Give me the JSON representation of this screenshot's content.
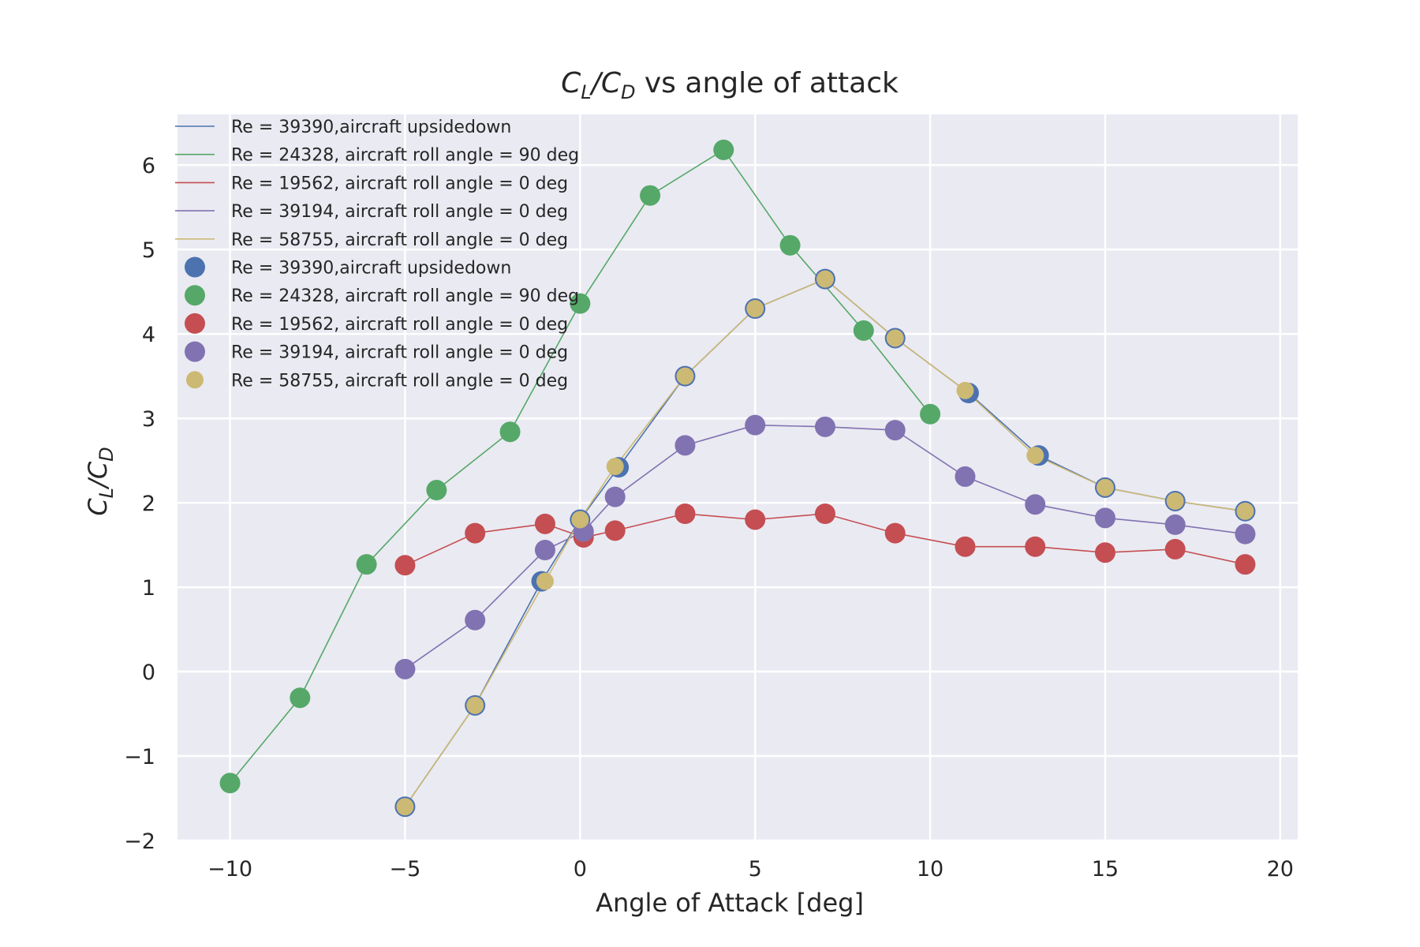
{
  "chart_data": {
    "type": "scatter",
    "title": "C_L/C_D vs angle of attack",
    "title_parts": {
      "c1": "C",
      "s1": "L",
      "slash": "/",
      "c2": "C",
      "s2": "D",
      "rest": " vs angle of attack"
    },
    "xlabel": "Angle of Attack [deg]",
    "ylabel": "C_L/C_D",
    "ylabel_parts": {
      "c1": "C",
      "s1": "L",
      "slash": "/",
      "c2": "C",
      "s2": "D"
    },
    "xlim": [
      -11.5,
      20.5
    ],
    "ylim": [
      -2,
      6.6
    ],
    "xticks": [
      -10,
      -5,
      0,
      5,
      10,
      15,
      20
    ],
    "xtick_labels": [
      "−10",
      "−5",
      "0",
      "5",
      "10",
      "15",
      "20"
    ],
    "yticks": [
      -2,
      -1,
      0,
      1,
      2,
      3,
      4,
      5,
      6
    ],
    "ytick_labels": [
      "−2",
      "−1",
      "0",
      "1",
      "2",
      "3",
      "4",
      "5",
      "6"
    ],
    "grid": true,
    "legend_position": "top-left",
    "colors": {
      "background": "#eaeaf2",
      "grid": "#ffffff",
      "text": "#262626"
    },
    "series": [
      {
        "name": "Re = 39390,aircraft upsidedown",
        "color": "#4c72b0",
        "x": [
          -5,
          -3,
          -1.1,
          0,
          1.1,
          3,
          5,
          7,
          9,
          11.1,
          13.1,
          15,
          17,
          19
        ],
        "y": [
          -1.6,
          -0.4,
          1.07,
          1.8,
          2.42,
          3.5,
          4.3,
          4.65,
          3.95,
          3.3,
          2.56,
          2.18,
          2.02,
          1.9
        ]
      },
      {
        "name": "Re = 24328, aircraft roll angle = 90 deg",
        "color": "#55a868",
        "x": [
          -10,
          -8,
          -6.1,
          -4.1,
          -2,
          0,
          2,
          4.1,
          6,
          8.1,
          10
        ],
        "y": [
          -1.32,
          -0.31,
          1.27,
          2.15,
          2.84,
          4.36,
          5.64,
          6.18,
          5.05,
          4.04,
          3.05
        ]
      },
      {
        "name": "Re = 19562, aircraft roll angle = 0 deg",
        "color": "#c44e52",
        "x": [
          -5,
          -3,
          -1,
          0.1,
          1,
          3,
          5,
          7,
          9,
          11,
          13,
          15,
          17,
          19
        ],
        "y": [
          1.26,
          1.64,
          1.75,
          1.59,
          1.67,
          1.87,
          1.8,
          1.87,
          1.64,
          1.48,
          1.48,
          1.41,
          1.45,
          1.27
        ]
      },
      {
        "name": "Re = 39194, aircraft roll angle = 0 deg",
        "color": "#8172b2",
        "x": [
          -5,
          -3,
          -1,
          0.1,
          1,
          3,
          5,
          7,
          9,
          11,
          13,
          15,
          17,
          19
        ],
        "y": [
          0.03,
          0.61,
          1.44,
          1.66,
          2.07,
          2.68,
          2.92,
          2.9,
          2.86,
          2.31,
          1.98,
          1.82,
          1.74,
          1.63
        ]
      },
      {
        "name": "Re = 58755, aircraft roll angle = 0 deg",
        "color": "#ccb974",
        "x": [
          -5,
          -3,
          -1,
          0,
          1,
          3,
          5,
          7,
          9,
          11,
          13,
          15,
          17,
          19
        ],
        "y": [
          -1.6,
          -0.4,
          1.07,
          1.8,
          2.43,
          3.5,
          4.3,
          4.65,
          3.95,
          3.33,
          2.56,
          2.18,
          2.02,
          1.9
        ]
      }
    ]
  }
}
